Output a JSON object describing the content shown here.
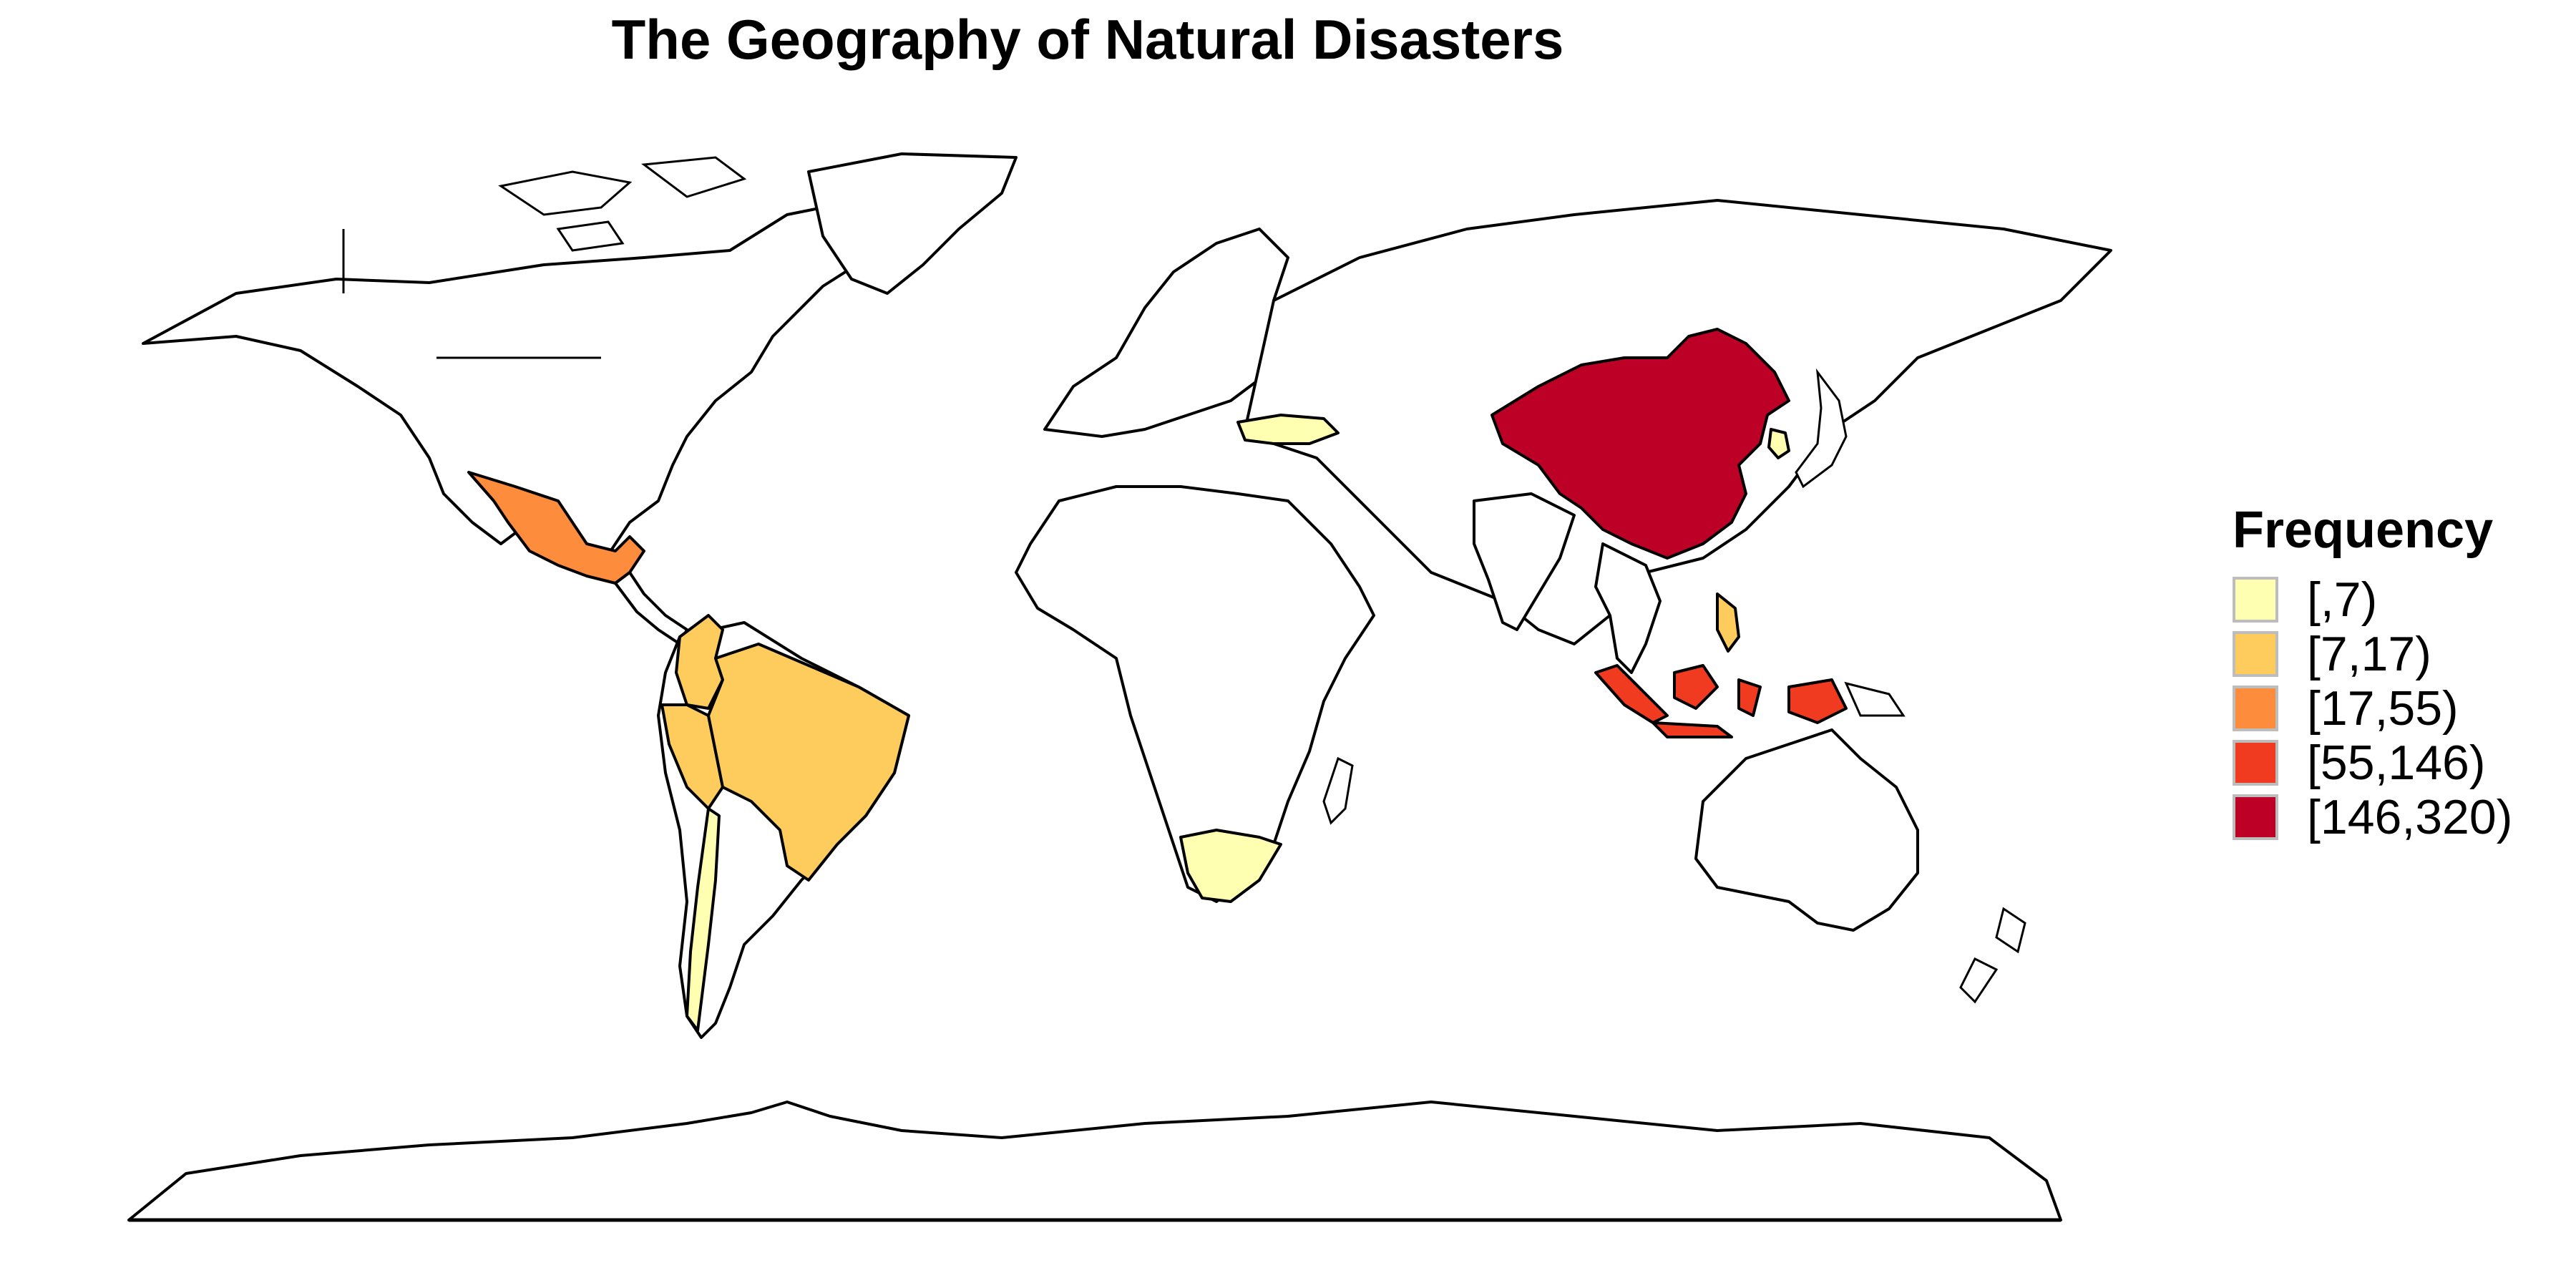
{
  "map": {
    "title": "The Geography of Natural Disasters",
    "legend": {
      "title": "Frequency",
      "bins": [
        {
          "label": "[,7)",
          "color": "#FFFFB2"
        },
        {
          "label": "[7,17)",
          "color": "#FECC5C"
        },
        {
          "label": "[17,55)",
          "color": "#FD8D3C"
        },
        {
          "label": "[55,146)",
          "color": "#F03B20"
        },
        {
          "label": "[146,320)",
          "color": "#BD0026"
        }
      ]
    },
    "regions": [
      {
        "name": "China",
        "bin": "[146,320)"
      },
      {
        "name": "Indonesia",
        "bin": "[55,146)"
      },
      {
        "name": "Mexico",
        "bin": "[17,55)"
      },
      {
        "name": "Brazil",
        "bin": "[7,17)"
      },
      {
        "name": "Colombia",
        "bin": "[7,17)"
      },
      {
        "name": "Peru",
        "bin": "[7,17)"
      },
      {
        "name": "Philippines",
        "bin": "[7,17)"
      },
      {
        "name": "Turkey",
        "bin": "[,7)"
      },
      {
        "name": "South Africa",
        "bin": "[,7)"
      },
      {
        "name": "Chile",
        "bin": "[,7)"
      },
      {
        "name": "South Korea",
        "bin": "[,7)"
      }
    ]
  }
}
